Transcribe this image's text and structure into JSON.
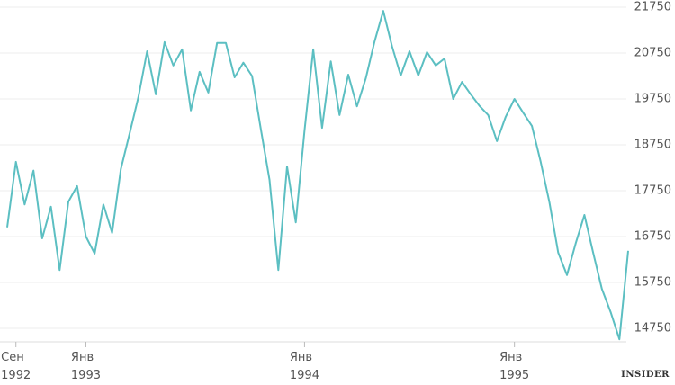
{
  "chart_data": {
    "type": "line",
    "categories": [
      null,
      "Сен\n1992",
      null,
      null,
      null,
      null,
      null,
      null,
      null,
      "Янв\n1993",
      null,
      null,
      null,
      null,
      null,
      null,
      null,
      null,
      null,
      null,
      null,
      null,
      null,
      null,
      null,
      null,
      null,
      null,
      null,
      null,
      null,
      null,
      null,
      null,
      "Янв\n1994",
      null,
      null,
      null,
      null,
      null,
      null,
      null,
      null,
      null,
      null,
      null,
      null,
      null,
      null,
      null,
      null,
      null,
      null,
      null,
      null,
      null,
      null,
      null,
      "Янв\n1995",
      null,
      null,
      null,
      null,
      null,
      null,
      null,
      null,
      null,
      null,
      null,
      null,
      null
    ],
    "series": [
      {
        "color": "#5cbfc2",
        "values": [
          16950,
          18380,
          17450,
          18190,
          16710,
          17400,
          16020,
          17510,
          17850,
          16750,
          16380,
          17450,
          16830,
          18220,
          19000,
          19790,
          20790,
          19850,
          20990,
          20480,
          20830,
          19500,
          20340,
          19890,
          20970,
          20970,
          20220,
          20540,
          20250,
          19100,
          17990,
          16020,
          18280,
          17060,
          19060,
          20830,
          19120,
          20570,
          19400,
          20280,
          19590,
          20200,
          21000,
          21670,
          20900,
          20260,
          20790,
          20260,
          20770,
          20480,
          20630,
          19750,
          20120,
          19850,
          19600,
          19400,
          18830,
          19360,
          19750,
          19450,
          19160,
          18380,
          17500,
          16400,
          15910,
          16600,
          17220,
          16400,
          15610,
          15100,
          14510,
          16440
        ]
      }
    ],
    "ylim": [
      14400,
      21850
    ],
    "yticks": [
      14750,
      15750,
      16750,
      17750,
      18750,
      19750,
      20750,
      21750
    ],
    "grid": true,
    "watermark": "INSIDER"
  }
}
